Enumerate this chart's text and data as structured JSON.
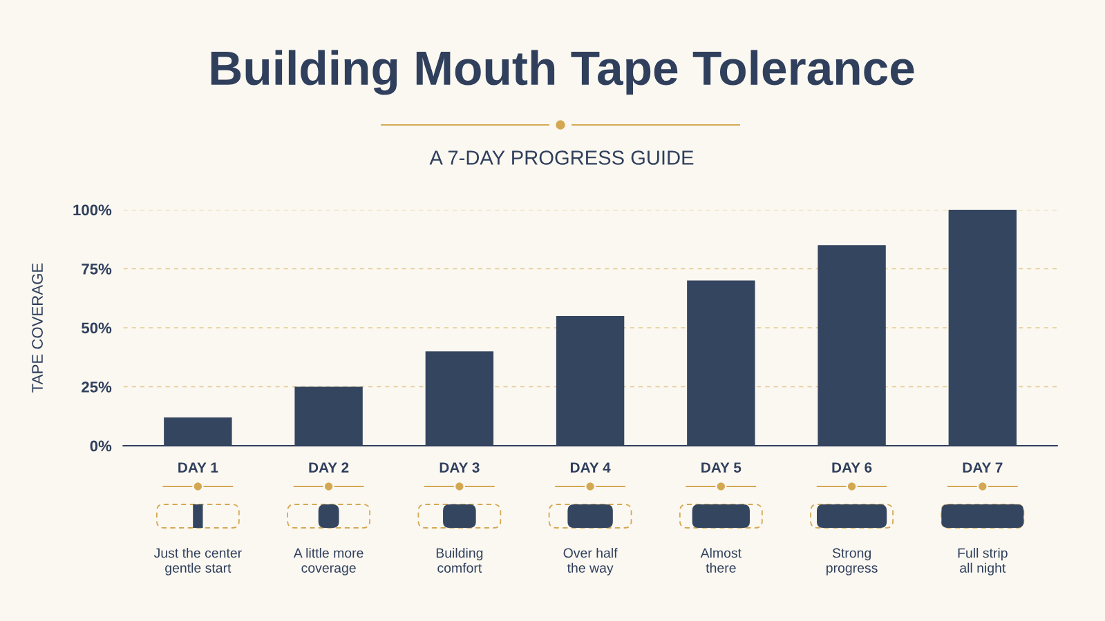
{
  "chart_data": {
    "type": "bar",
    "title": "Building Mouth Tape Tolerance",
    "subtitle": "A 7-DAY PROGRESS GUIDE",
    "ylabel": "TAPE COVERAGE",
    "categories": [
      "DAY 1",
      "DAY 2",
      "DAY 3",
      "DAY 4",
      "DAY 5",
      "DAY 6",
      "DAY 7"
    ],
    "values": [
      12,
      25,
      40,
      55,
      70,
      85,
      100
    ],
    "color": "#34455f",
    "ylim": [
      0,
      100
    ],
    "yticks": [
      {
        "value": 0,
        "label": "0%"
      },
      {
        "value": 25,
        "label": "25%"
      },
      {
        "value": 50,
        "label": "50%"
      },
      {
        "value": 75,
        "label": "75%"
      },
      {
        "value": 100,
        "label": "100%"
      }
    ],
    "grid": "y",
    "annotations": [
      "Just the center\ngentle start",
      "A little more\ncoverage",
      "Building\ncomfort",
      "Over half\nthe way",
      "Almost\nthere",
      "Strong\nprogress",
      "Full strip\nall night"
    ]
  }
}
